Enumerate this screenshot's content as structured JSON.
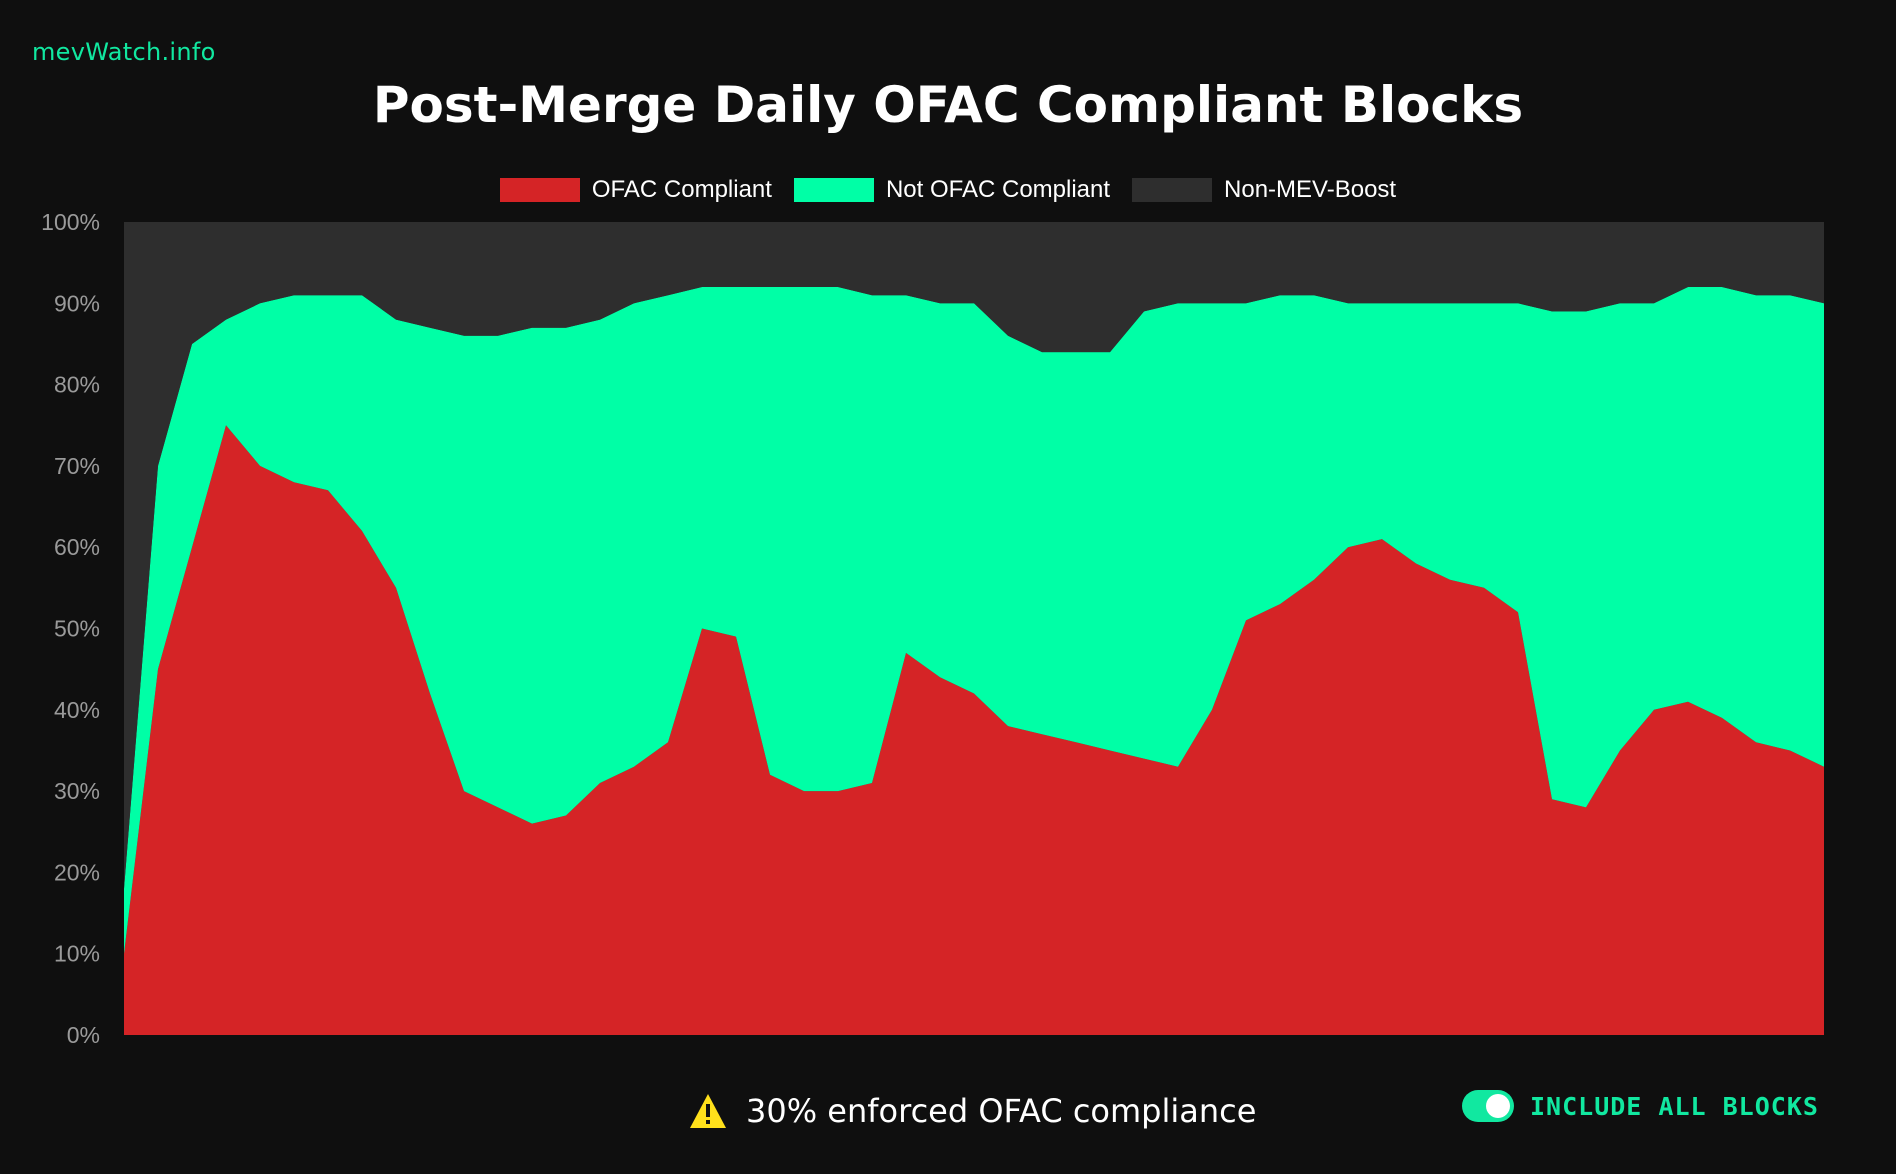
{
  "site": {
    "name": "mevWatch.info"
  },
  "colors": {
    "background": "#0f0f0f",
    "plot_background": "#2e2e2e",
    "ofac_compliant": "#d52426",
    "not_ofac_compliant": "#00ffa6",
    "non_mev_boost": "#2e2e2e",
    "accent": "#11e8a0",
    "warning": "#ffe01b"
  },
  "chart_data": {
    "type": "area",
    "stacked": true,
    "title": "Post-Merge Daily OFAC Compliant Blocks",
    "xlabel": "",
    "ylabel": "",
    "ylim": [
      0,
      100
    ],
    "y_ticks": [
      "0%",
      "10%",
      "20%",
      "30%",
      "40%",
      "50%",
      "60%",
      "70%",
      "80%",
      "90%",
      "100%"
    ],
    "legend_position": "top-center",
    "grid": false,
    "x": [
      0,
      2,
      4,
      6,
      8,
      10,
      12,
      14,
      16,
      18,
      20,
      22,
      24,
      26,
      28,
      30,
      32,
      34,
      36,
      38,
      40,
      42,
      44,
      46,
      48,
      50,
      52,
      54,
      56,
      58,
      60,
      62,
      64,
      66,
      68,
      70,
      72,
      74,
      76,
      78,
      80,
      82,
      84,
      86,
      88,
      90,
      92,
      94,
      96,
      98,
      100
    ],
    "series": [
      {
        "name": "OFAC Compliant",
        "values": [
          10,
          45,
          60,
          75,
          70,
          68,
          67,
          62,
          55,
          42,
          30,
          28,
          26,
          27,
          31,
          33,
          36,
          50,
          49,
          32,
          30,
          30,
          31,
          47,
          44,
          42,
          38,
          37,
          36,
          35,
          34,
          33,
          40,
          51,
          53,
          56,
          60,
          61,
          58,
          56,
          55,
          52,
          29,
          28,
          35,
          40,
          41,
          39,
          36,
          35,
          33
        ]
      },
      {
        "name": "Not OFAC Compliant",
        "values": [
          8,
          25,
          25,
          13,
          20,
          23,
          24,
          29,
          33,
          45,
          56,
          58,
          61,
          60,
          57,
          57,
          55,
          42,
          43,
          60,
          62,
          62,
          60,
          44,
          46,
          48,
          48,
          47,
          48,
          49,
          55,
          57,
          50,
          39,
          38,
          35,
          30,
          29,
          32,
          34,
          35,
          38,
          60,
          61,
          55,
          50,
          51,
          53,
          55,
          56,
          57
        ]
      },
      {
        "name": "Non-MEV-Boost",
        "values": [
          82,
          30,
          15,
          12,
          10,
          9,
          9,
          9,
          12,
          13,
          14,
          14,
          13,
          13,
          12,
          10,
          9,
          8,
          8,
          8,
          8,
          8,
          9,
          9,
          10,
          10,
          14,
          16,
          16,
          16,
          11,
          10,
          10,
          10,
          9,
          9,
          10,
          10,
          10,
          10,
          10,
          10,
          11,
          11,
          10,
          10,
          8,
          8,
          9,
          9,
          10
        ]
      }
    ]
  },
  "footer": {
    "warning_text": "30% enforced OFAC compliance",
    "toggle_label": "INCLUDE ALL BLOCKS",
    "toggle_on": true
  }
}
